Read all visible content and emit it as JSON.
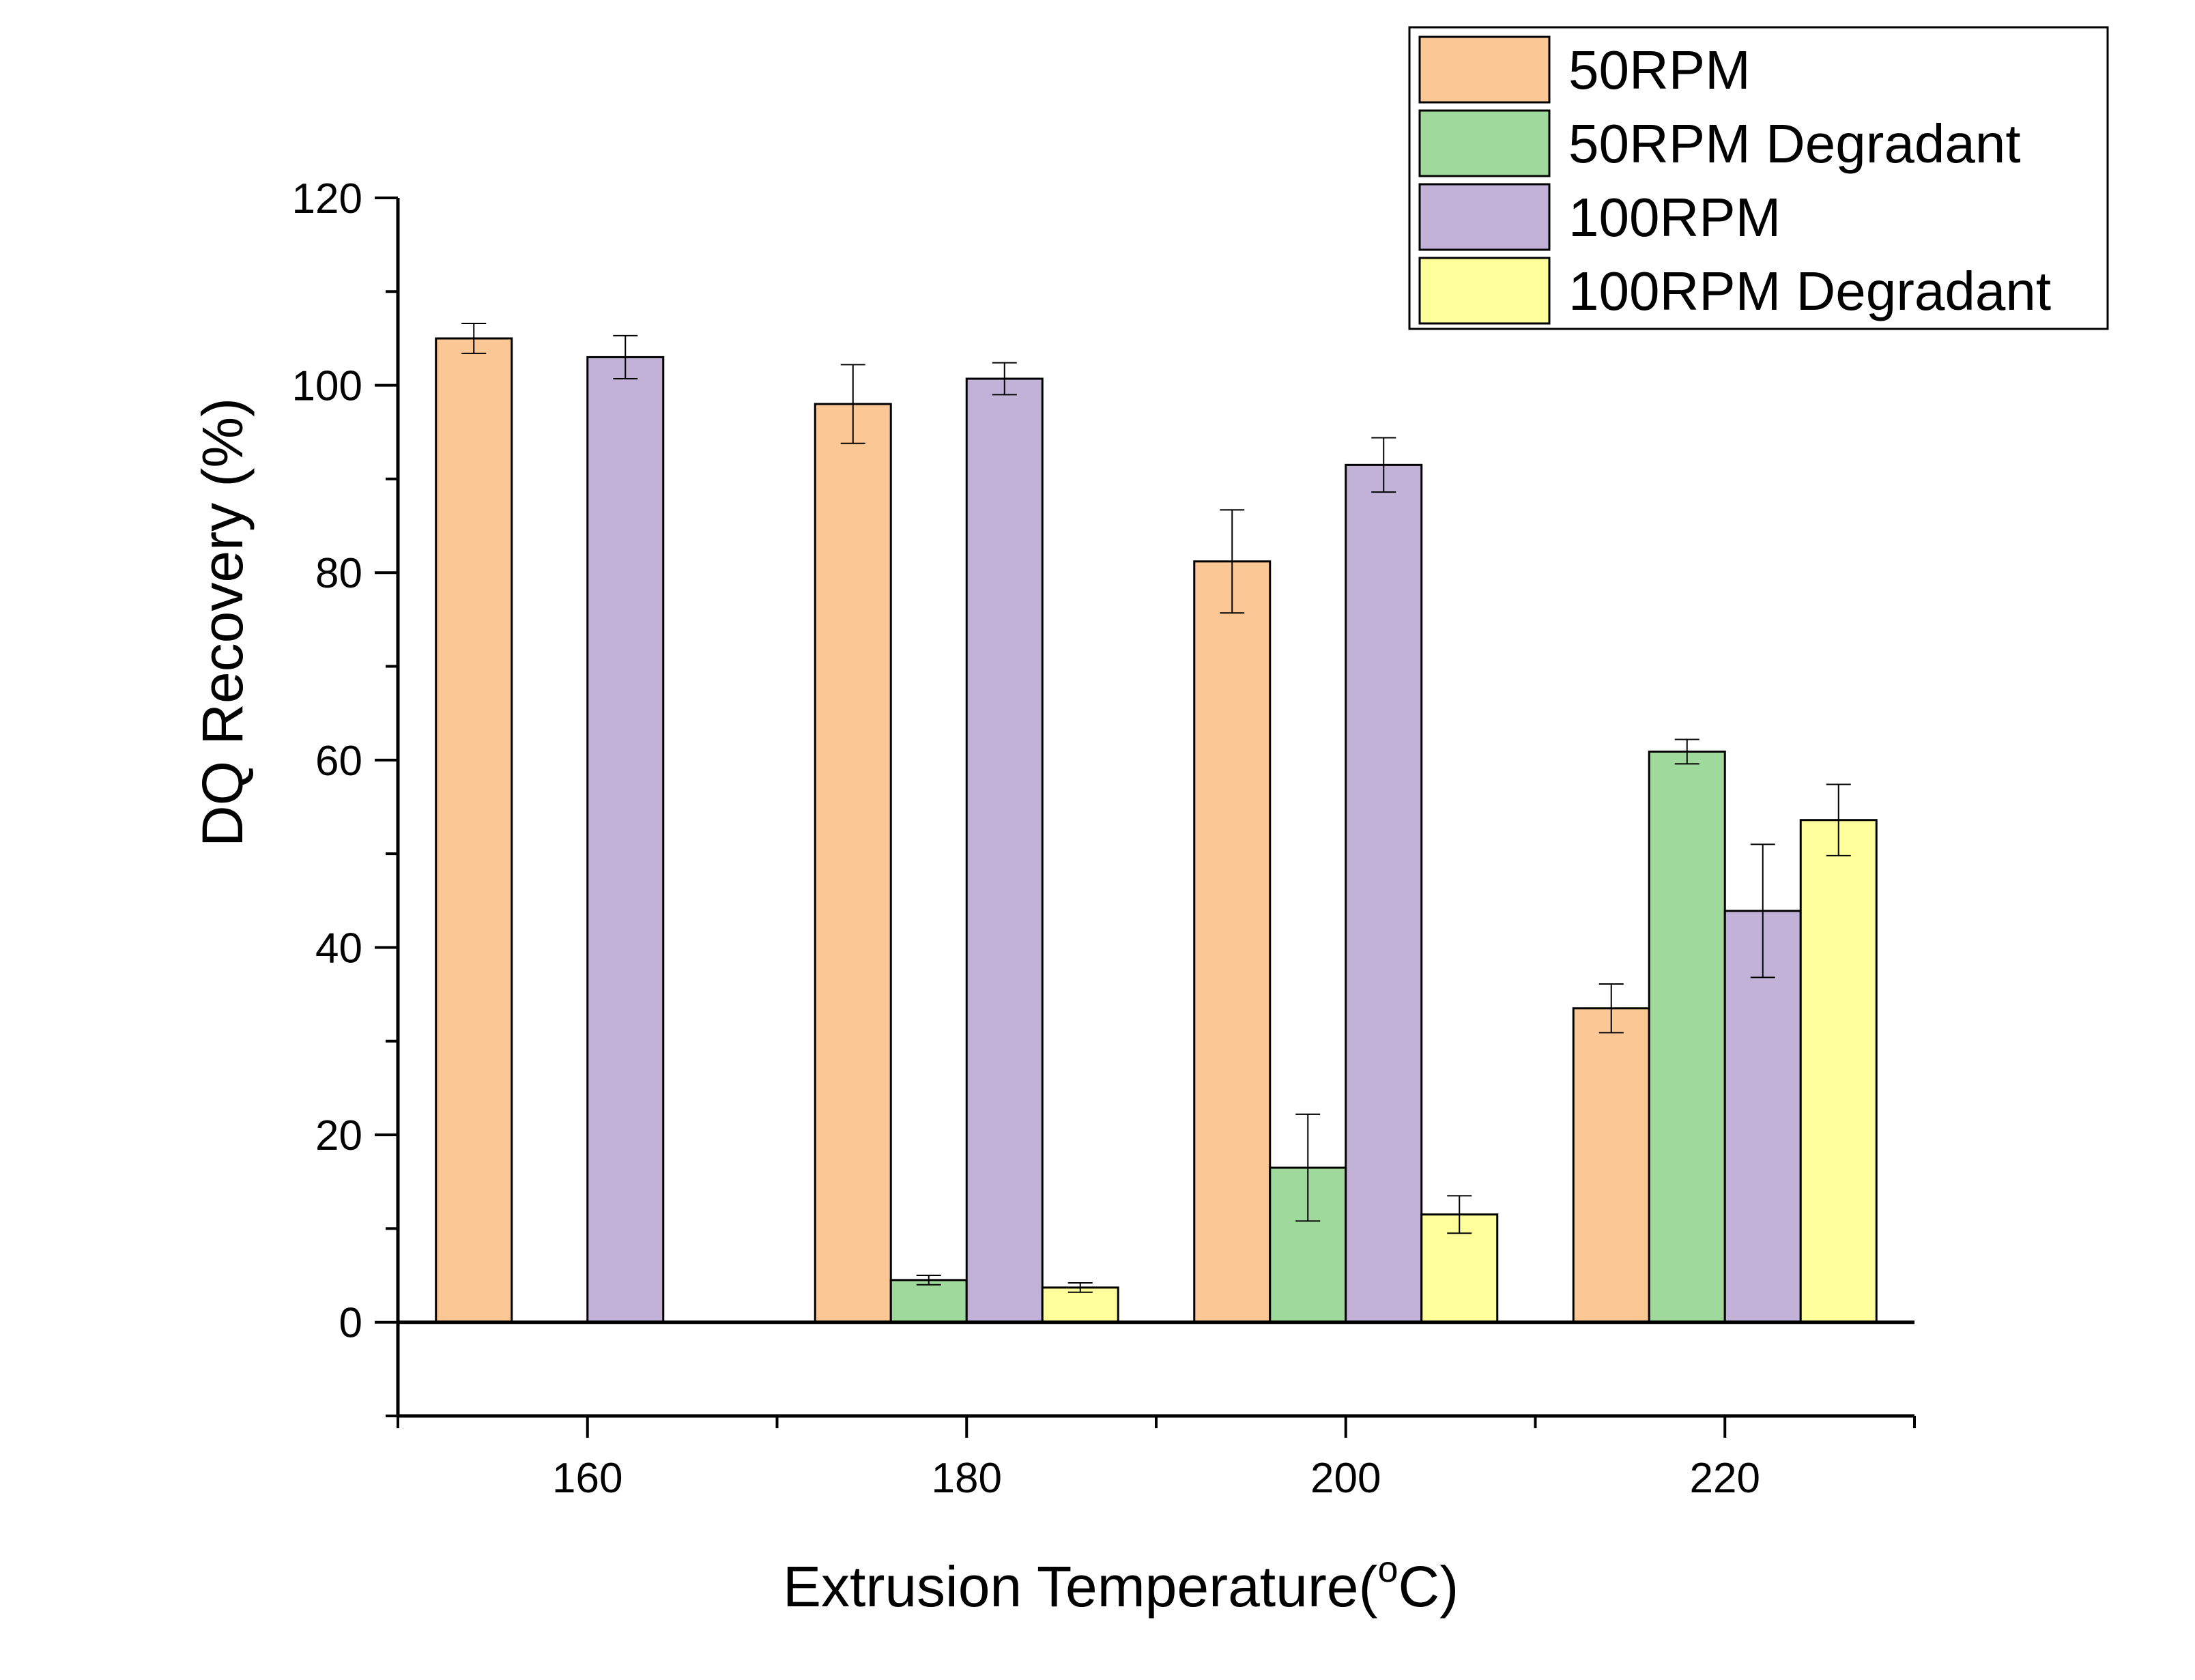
{
  "chart_data": {
    "type": "bar",
    "categories": [
      "160",
      "180",
      "200",
      "220"
    ],
    "xlabel": "Extrusion Temperature(",
    "xlabel_sup": "o",
    "xlabel_suffix": "C)",
    "ylabel": "DQ Recovery (%)",
    "ylim": [
      -10,
      120
    ],
    "yticks": [
      0,
      20,
      40,
      60,
      80,
      100,
      120
    ],
    "grid": false,
    "legend_position": "top-right",
    "series": [
      {
        "name": "50RPM",
        "color": "#FBC794",
        "values": [
          105,
          98,
          81.2,
          33.5
        ],
        "errors": [
          1.6,
          4.2,
          5.5,
          2.6
        ]
      },
      {
        "name": "50RPM Degradant",
        "color": "#9FD99B",
        "values": [
          null,
          4.5,
          16.5,
          60.9
        ],
        "errors": [
          null,
          0.5,
          5.7,
          1.3
        ]
      },
      {
        "name": "100RPM",
        "color": "#C2B2D8",
        "values": [
          103,
          100.7,
          91.5,
          43.9
        ],
        "errors": [
          2.3,
          1.7,
          2.9,
          7.1
        ]
      },
      {
        "name": "100RPM Degradant",
        "color": "#FEFE9A",
        "values": [
          null,
          3.7,
          11.5,
          53.6
        ],
        "errors": [
          null,
          0.5,
          2.0,
          3.8
        ]
      }
    ]
  }
}
